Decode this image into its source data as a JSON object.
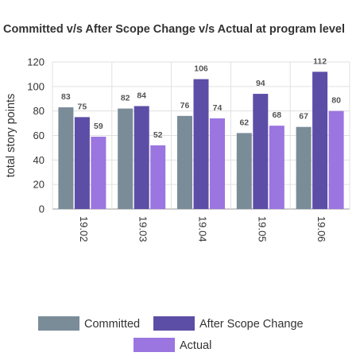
{
  "chart_data": {
    "type": "bar",
    "title": "Committed v/s After Scope Change v/s Actual at program level",
    "ylabel": "total story points",
    "xlabel": "",
    "ylim": [
      0,
      120
    ],
    "yticks": [
      0,
      20,
      40,
      60,
      80,
      100,
      120
    ],
    "categories": [
      "19.02",
      "19.03",
      "19.04",
      "19.05",
      "19.06"
    ],
    "series": [
      {
        "name": "Committed",
        "color": "#7b8c99",
        "values": [
          83,
          82,
          76,
          62,
          67
        ]
      },
      {
        "name": "After Scope Change",
        "color": "#5c4ea6",
        "values": [
          75,
          84,
          106,
          94,
          112
        ]
      },
      {
        "name": "Actual",
        "color": "#9b75e0",
        "values": [
          59,
          52,
          74,
          68,
          80
        ]
      }
    ],
    "grid": true,
    "legend_position": "bottom"
  }
}
